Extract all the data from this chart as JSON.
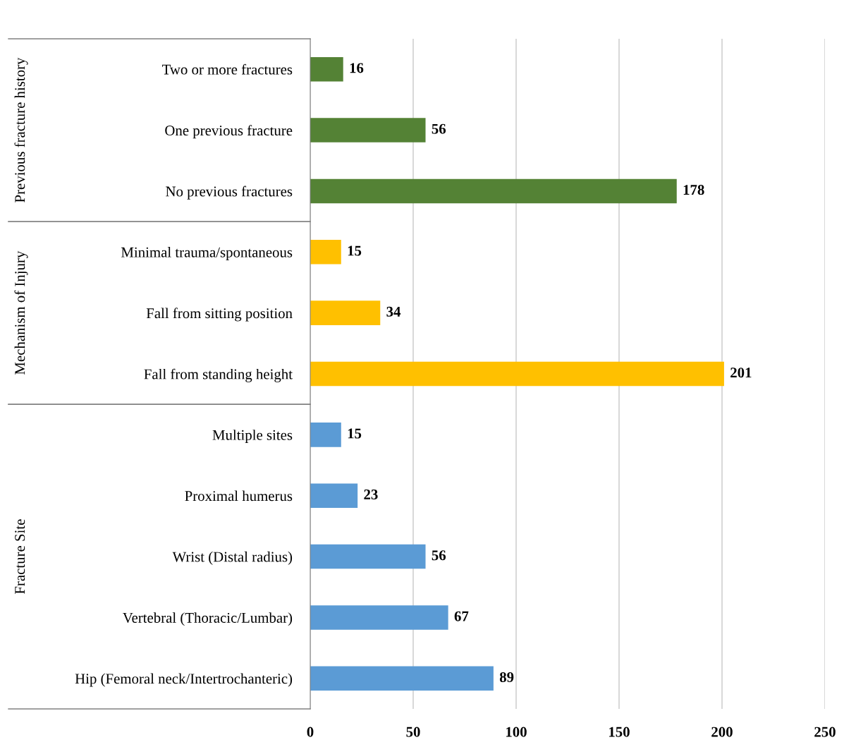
{
  "chart_data": {
    "type": "bar",
    "orientation": "horizontal",
    "categories": [
      "Two or more fractures",
      "One previous fracture",
      "No previous fractures",
      "Minimal trauma/spontaneous",
      "Fall from sitting position",
      "Fall from standing height",
      "Multiple sites",
      "Proximal humerus",
      "Wrist (Distal radius)",
      "Vertebral (Thoracic/Lumbar)",
      "Hip (Femoral neck/Intertrochanteric)"
    ],
    "series": [
      {
        "color": "#548235",
        "values": [
          16,
          56,
          178,
          null,
          null,
          null,
          null,
          null,
          null,
          null,
          null
        ]
      },
      {
        "color": "#ffc000",
        "values": [
          null,
          null,
          null,
          15,
          34,
          201,
          null,
          null,
          null,
          null,
          null
        ]
      },
      {
        "color": "#5b9bd5",
        "values": [
          null,
          null,
          null,
          null,
          null,
          null,
          15,
          23,
          56,
          67,
          89
        ]
      }
    ],
    "xlim": [
      0,
      250
    ],
    "xticks": [
      0,
      50,
      100,
      150,
      200,
      250
    ],
    "grid": "x",
    "data_labels": true,
    "legend": false,
    "annotations": [
      "Previous fracture history",
      "Mechanism of Injury",
      "Fracture Site"
    ]
  }
}
